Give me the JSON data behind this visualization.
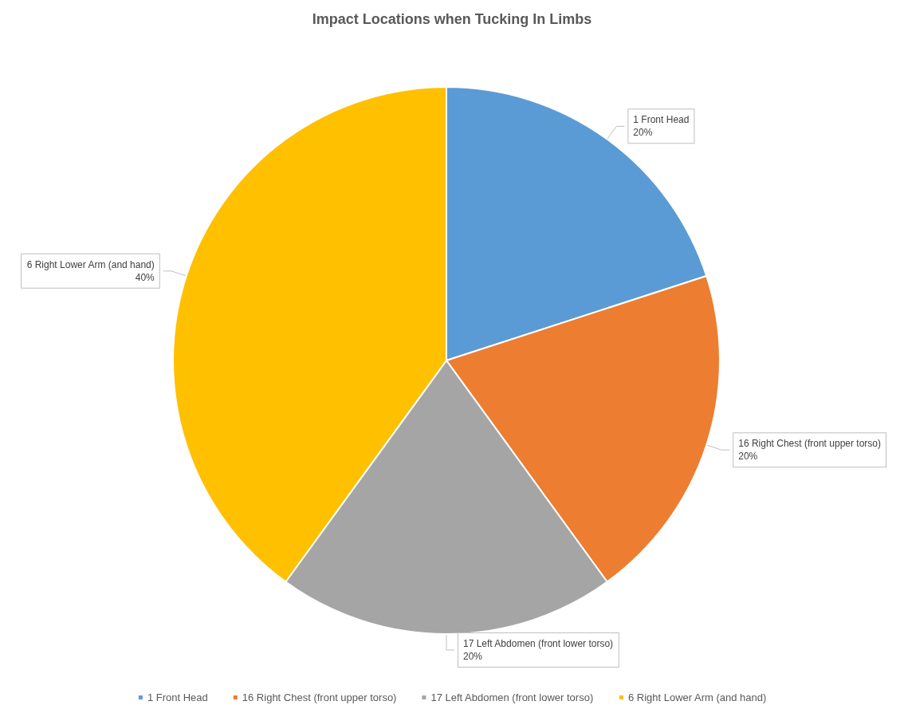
{
  "chart_data": {
    "type": "pie",
    "title": "Impact Locations when Tucking In Limbs",
    "categories": [
      "1 Front Head",
      "16 Right Chest (front upper torso)",
      "17 Left Abdomen (front lower torso)",
      "6 Right Lower Arm (and hand)"
    ],
    "values": [
      20,
      20,
      20,
      40
    ],
    "colors": [
      "#5b9bd5",
      "#ed7d31",
      "#a5a5a5",
      "#ffc000"
    ],
    "value_labels": [
      "20%",
      "20%",
      "20%",
      "40%"
    ],
    "legend": "bottom"
  }
}
